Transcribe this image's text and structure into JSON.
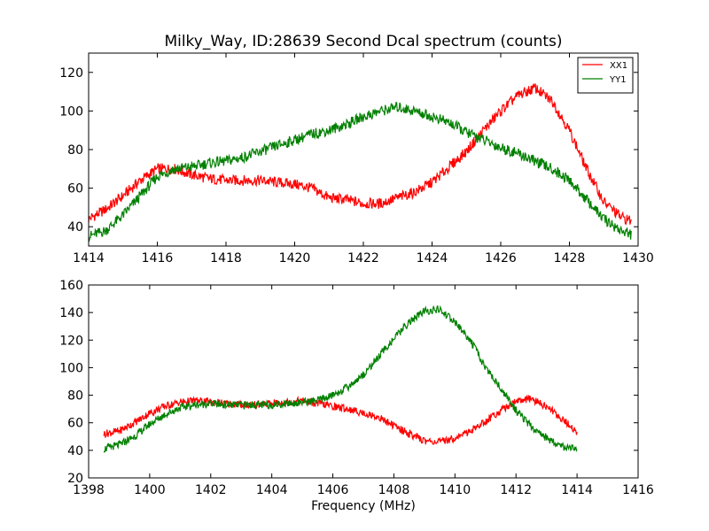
{
  "chart_data": [
    {
      "type": "line",
      "title": "Milky_Way, ID:28639 Second Dcal spectrum (counts)",
      "xlabel": "",
      "ylabel": "",
      "xlim": [
        1414,
        1430
      ],
      "ylim": [
        30,
        130
      ],
      "xticks": [
        "1414",
        "1416",
        "1418",
        "1420",
        "1422",
        "1424",
        "1426",
        "1428",
        "1430"
      ],
      "yticks": [
        "40",
        "60",
        "80",
        "100",
        "120"
      ],
      "grid": false,
      "legend": "top-right",
      "series": [
        {
          "name": "XX1",
          "color": "#ff0000",
          "x": [
            1414.0,
            1414.5,
            1415.0,
            1415.5,
            1416.0,
            1416.5,
            1417.0,
            1417.5,
            1418.0,
            1418.5,
            1419.0,
            1419.5,
            1420.0,
            1420.5,
            1421.0,
            1421.5,
            1422.0,
            1422.5,
            1423.0,
            1423.5,
            1424.0,
            1424.5,
            1425.0,
            1425.5,
            1426.0,
            1426.5,
            1427.0,
            1427.5,
            1428.0,
            1428.5,
            1429.0,
            1429.5,
            1429.8
          ],
          "y": [
            44,
            49,
            56,
            64,
            70,
            70,
            67,
            65,
            64,
            64,
            64,
            63,
            62,
            60,
            55,
            54,
            52,
            52,
            55,
            58,
            63,
            71,
            79,
            90,
            100,
            108,
            112,
            105,
            90,
            70,
            53,
            45,
            43
          ]
        },
        {
          "name": "YY1",
          "color": "#008000",
          "x": [
            1414.0,
            1414.5,
            1415.0,
            1415.5,
            1416.0,
            1416.5,
            1417.0,
            1417.5,
            1418.0,
            1418.5,
            1419.0,
            1419.5,
            1420.0,
            1420.5,
            1421.0,
            1421.5,
            1422.0,
            1422.5,
            1423.0,
            1423.5,
            1424.0,
            1424.5,
            1425.0,
            1425.5,
            1426.0,
            1426.5,
            1427.0,
            1427.5,
            1428.0,
            1428.5,
            1429.0,
            1429.5,
            1429.8
          ],
          "y": [
            35,
            38,
            46,
            56,
            66,
            70,
            71,
            73,
            74,
            76,
            79,
            82,
            85,
            88,
            90,
            93,
            97,
            100,
            102,
            100,
            97,
            94,
            89,
            85,
            81,
            78,
            74,
            70,
            64,
            54,
            44,
            38,
            36
          ]
        }
      ]
    },
    {
      "type": "line",
      "title": "",
      "xlabel": "Frequency (MHz)",
      "ylabel": "",
      "xlim": [
        1398,
        1416
      ],
      "ylim": [
        20,
        160
      ],
      "xticks": [
        "1398",
        "1400",
        "1402",
        "1404",
        "1406",
        "1408",
        "1410",
        "1412",
        "1414",
        "1416"
      ],
      "yticks": [
        "20",
        "40",
        "60",
        "80",
        "100",
        "120",
        "140",
        "160"
      ],
      "grid": false,
      "series": [
        {
          "color": "#ff0000",
          "x": [
            1398.5,
            1399.0,
            1399.5,
            1400.0,
            1400.5,
            1401.0,
            1401.5,
            1402.0,
            1402.5,
            1403.0,
            1403.5,
            1404.0,
            1404.5,
            1405.0,
            1405.5,
            1406.0,
            1406.5,
            1407.0,
            1407.5,
            1408.0,
            1408.5,
            1409.0,
            1409.5,
            1410.0,
            1410.5,
            1411.0,
            1411.5,
            1412.0,
            1412.5,
            1413.0,
            1413.5,
            1414.0
          ],
          "y": [
            52,
            54,
            60,
            67,
            72,
            75,
            76,
            75,
            74,
            73,
            73,
            74,
            75,
            76,
            74,
            72,
            70,
            67,
            64,
            58,
            52,
            47,
            46,
            49,
            54,
            61,
            69,
            76,
            77,
            72,
            63,
            53
          ]
        },
        {
          "color": "#008000",
          "x": [
            1398.5,
            1399.0,
            1399.5,
            1400.0,
            1400.5,
            1401.0,
            1401.5,
            1402.0,
            1402.5,
            1403.0,
            1403.5,
            1404.0,
            1404.5,
            1405.0,
            1405.5,
            1406.0,
            1406.5,
            1407.0,
            1407.5,
            1408.0,
            1408.5,
            1409.0,
            1409.5,
            1410.0,
            1410.5,
            1411.0,
            1411.5,
            1412.0,
            1412.5,
            1413.0,
            1413.5,
            1414.0
          ],
          "y": [
            41,
            44,
            50,
            59,
            66,
            71,
            73,
            74,
            73,
            73,
            73,
            73,
            74,
            75,
            76,
            80,
            86,
            95,
            108,
            121,
            133,
            141,
            142,
            133,
            120,
            100,
            85,
            69,
            57,
            49,
            43,
            40
          ]
        }
      ]
    }
  ]
}
